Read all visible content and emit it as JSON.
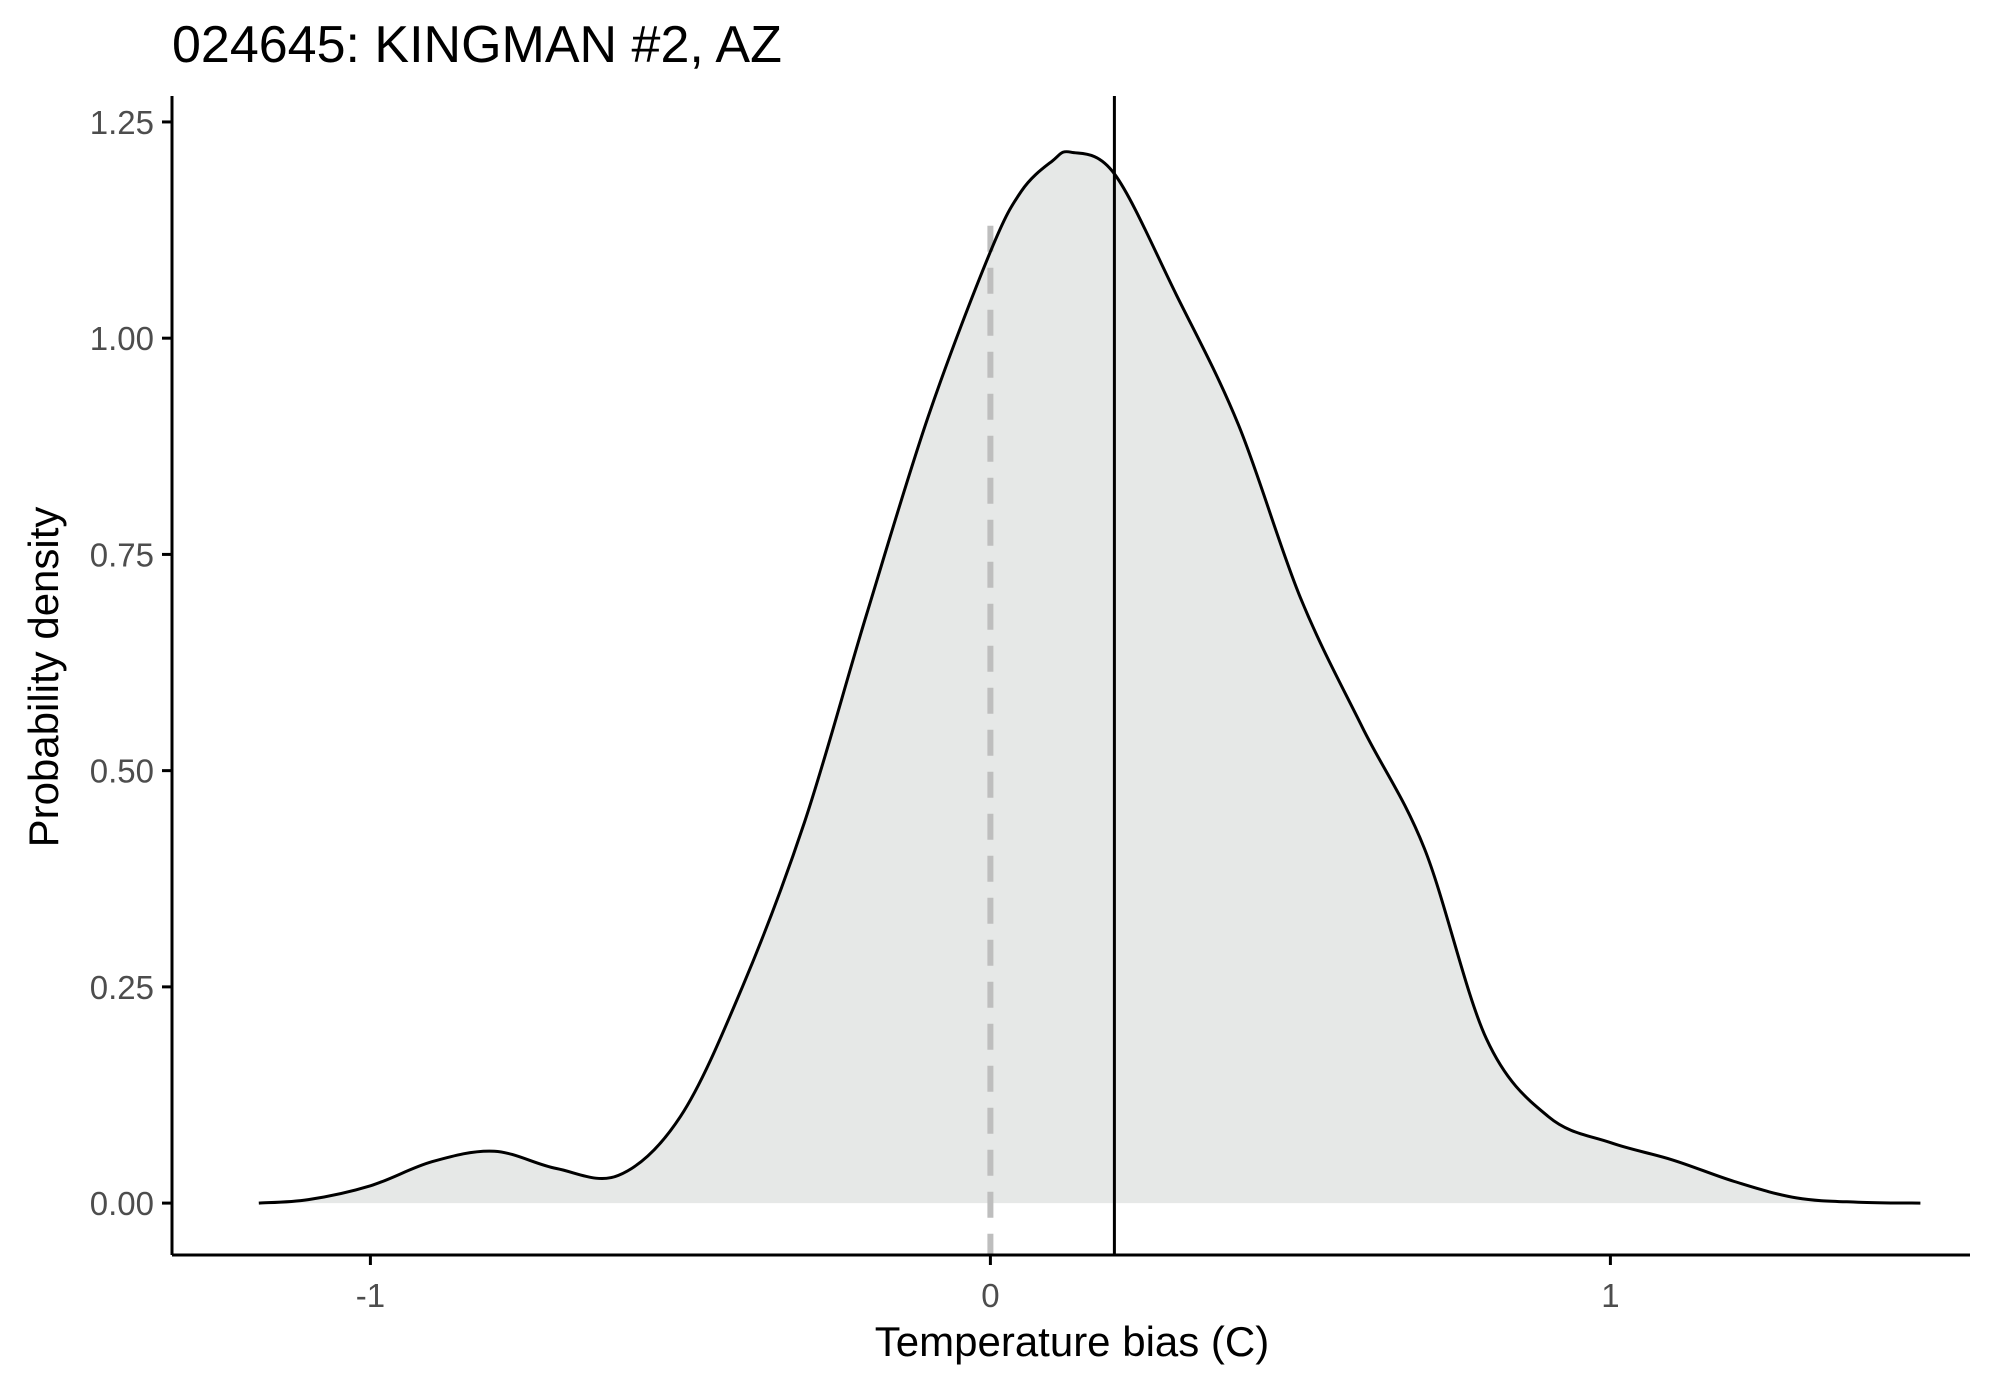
{
  "chart_data": {
    "type": "area",
    "title": "024645: KINGMAN #2, AZ",
    "xlabel": "Temperature bias (C)",
    "ylabel": "Probability density",
    "xlim": [
      -1.32,
      1.58
    ],
    "ylim": [
      -0.06,
      1.28
    ],
    "x_ticks": [
      {
        "value": -1,
        "label": "-1"
      },
      {
        "value": 0,
        "label": "0"
      },
      {
        "value": 1,
        "label": "1"
      }
    ],
    "y_ticks": [
      {
        "value": 0.0,
        "label": "0.00"
      },
      {
        "value": 0.25,
        "label": "0.25"
      },
      {
        "value": 0.5,
        "label": "0.50"
      },
      {
        "value": 0.75,
        "label": "0.75"
      },
      {
        "value": 1.0,
        "label": "1.00"
      },
      {
        "value": 1.25,
        "label": "1.25"
      }
    ],
    "series": [
      {
        "x": [
          -1.18,
          -1.1,
          -1.0,
          -0.9,
          -0.8,
          -0.7,
          -0.6,
          -0.5,
          -0.4,
          -0.3,
          -0.2,
          -0.1,
          0.0,
          0.05,
          0.1,
          0.13,
          0.2,
          0.3,
          0.4,
          0.5,
          0.6,
          0.7,
          0.8,
          0.9,
          1.0,
          1.1,
          1.2,
          1.3,
          1.4,
          1.5
        ],
        "y": [
          0.0,
          0.004,
          0.02,
          0.048,
          0.06,
          0.04,
          0.032,
          0.1,
          0.25,
          0.44,
          0.68,
          0.91,
          1.1,
          1.17,
          1.205,
          1.215,
          1.19,
          1.05,
          0.9,
          0.7,
          0.55,
          0.41,
          0.19,
          0.1,
          0.07,
          0.05,
          0.025,
          0.006,
          0.001,
          0.0
        ]
      }
    ],
    "reference_lines": [
      {
        "x": 0,
        "style": "dashed",
        "color": "#bebebe"
      },
      {
        "x": 0.2,
        "style": "solid",
        "color": "#000000"
      }
    ],
    "fill_color": "#e6e8e7",
    "line_color": "#000000",
    "grid": false,
    "legend": "none"
  }
}
